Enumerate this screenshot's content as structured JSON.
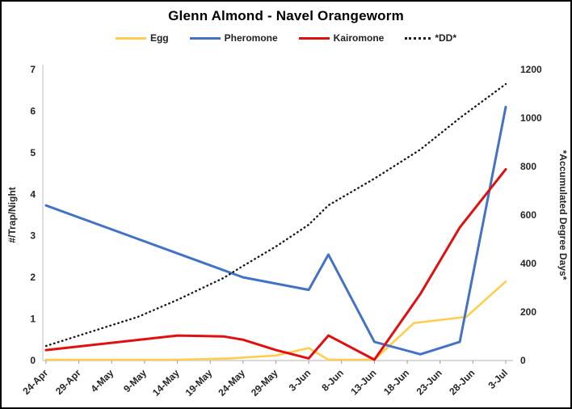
{
  "chart_data": {
    "type": "line",
    "title": "Glenn Almond - Navel Orangeworm",
    "grid": false,
    "legend_position": "top",
    "x_axis": {
      "kind": "date",
      "tick_labels": [
        "24-Apr",
        "29-Apr",
        "4-May",
        "9-May",
        "14-May",
        "19-May",
        "24-May",
        "29-May",
        "3-Jun",
        "8-Jun",
        "13-Jun",
        "18-Jun",
        "23-Jun",
        "28-Jun",
        "3-Jul"
      ],
      "tick_days_from_start": [
        0,
        5,
        10,
        15,
        20,
        25,
        30,
        35,
        40,
        45,
        50,
        55,
        60,
        65,
        70
      ],
      "label_rotation_deg": 45
    },
    "y_axis_left": {
      "label": "#/Trap/Night",
      "min": 0,
      "max": 7,
      "ticks": [
        0,
        1,
        2,
        3,
        4,
        5,
        6,
        7
      ]
    },
    "y_axis_right": {
      "label": "*Accumulated Degree Days*",
      "min": 0,
      "max": 1200,
      "ticks": [
        0,
        200,
        400,
        600,
        800,
        1000,
        1200
      ]
    },
    "series": [
      {
        "name": "Egg",
        "axis": "left",
        "style": "solid",
        "color": "#FFCE4F",
        "width": 2.6,
        "x_days": [
          0,
          10,
          20,
          28,
          35,
          40,
          43,
          50,
          56,
          64,
          70
        ],
        "values": [
          0.02,
          0.02,
          0.02,
          0.05,
          0.12,
          0.3,
          0.02,
          0.02,
          0.9,
          1.05,
          1.9
        ]
      },
      {
        "name": "Pheromone",
        "axis": "left",
        "style": "solid",
        "color": "#4472C4",
        "width": 3,
        "x_days": [
          0,
          30,
          35,
          40,
          43,
          50,
          57,
          63,
          70
        ],
        "values": [
          3.73,
          2.0,
          1.85,
          1.7,
          2.55,
          0.45,
          0.15,
          0.45,
          6.1
        ]
      },
      {
        "name": "Kairomone",
        "axis": "left",
        "style": "solid",
        "color": "#E01010",
        "width": 3,
        "x_days": [
          0,
          20,
          27,
          30,
          35,
          40,
          43,
          50,
          57,
          63,
          70
        ],
        "values": [
          0.25,
          0.6,
          0.58,
          0.5,
          0.25,
          0.05,
          0.6,
          0.02,
          1.6,
          3.2,
          4.6
        ]
      },
      {
        "name": "*DD*",
        "axis": "right",
        "style": "dotted",
        "color": "#1A1A1A",
        "width": 2.4,
        "x_days": [
          0,
          7,
          14,
          20,
          27,
          30,
          35,
          40,
          43,
          50,
          57,
          63,
          70
        ],
        "values": [
          60,
          120,
          180,
          250,
          340,
          390,
          470,
          560,
          640,
          750,
          870,
          1000,
          1140
        ]
      }
    ]
  }
}
